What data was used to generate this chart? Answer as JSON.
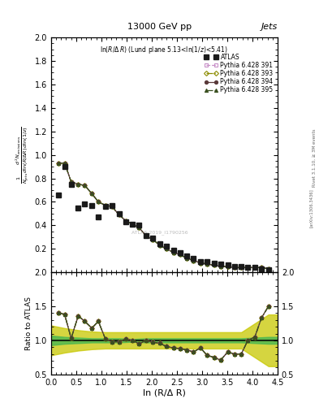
{
  "title_top": "13000 GeV pp",
  "title_right": "Jets",
  "inner_title": "ln(R/Δ R) (Lund plane 5.13<ln(1/z)<5.41)",
  "ylabel_main_line1": "d² N",
  "ylabel_ratio": "Ratio to ATLAS",
  "xlabel": "ln (R/Δ R)",
  "right_label_top": "Rivet 3.1.10, ≥ 3M events",
  "right_label_bot": "[arXiv:1306.3436]",
  "watermark": "ATLAS 2019_I1790256",
  "xlim": [
    0,
    4.5
  ],
  "ylim_main": [
    0,
    2.0
  ],
  "ylim_ratio": [
    0.5,
    2.0
  ],
  "atlas_x": [
    0.14,
    0.27,
    0.4,
    0.54,
    0.67,
    0.81,
    0.94,
    1.08,
    1.21,
    1.35,
    1.48,
    1.62,
    1.75,
    1.89,
    2.02,
    2.16,
    2.29,
    2.43,
    2.56,
    2.7,
    2.83,
    2.97,
    3.1,
    3.24,
    3.37,
    3.51,
    3.64,
    3.78,
    3.91,
    4.05,
    4.18,
    4.32
  ],
  "atlas_y": [
    0.66,
    0.9,
    0.75,
    0.55,
    0.58,
    0.57,
    0.47,
    0.56,
    0.57,
    0.5,
    0.43,
    0.41,
    0.4,
    0.31,
    0.29,
    0.24,
    0.22,
    0.19,
    0.17,
    0.14,
    0.12,
    0.09,
    0.09,
    0.08,
    0.07,
    0.06,
    0.05,
    0.05,
    0.04,
    0.04,
    0.03,
    0.02
  ],
  "atlas_yerr": [
    0.05,
    0.04,
    0.04,
    0.04,
    0.04,
    0.04,
    0.03,
    0.03,
    0.03,
    0.03,
    0.02,
    0.02,
    0.02,
    0.02,
    0.02,
    0.01,
    0.01,
    0.01,
    0.01,
    0.01,
    0.01,
    0.01,
    0.01,
    0.01,
    0.01,
    0.01,
    0.005,
    0.005,
    0.005,
    0.005,
    0.005,
    0.005
  ],
  "py391_y": [
    0.93,
    0.93,
    0.77,
    0.75,
    0.74,
    0.67,
    0.6,
    0.57,
    0.56,
    0.49,
    0.44,
    0.41,
    0.38,
    0.31,
    0.28,
    0.23,
    0.2,
    0.17,
    0.15,
    0.12,
    0.1,
    0.08,
    0.07,
    0.06,
    0.05,
    0.05,
    0.04,
    0.04,
    0.04,
    0.04,
    0.04,
    0.03
  ],
  "py393_y": [
    0.93,
    0.93,
    0.77,
    0.75,
    0.74,
    0.67,
    0.6,
    0.57,
    0.56,
    0.49,
    0.44,
    0.41,
    0.38,
    0.31,
    0.28,
    0.23,
    0.2,
    0.17,
    0.15,
    0.12,
    0.1,
    0.08,
    0.07,
    0.06,
    0.05,
    0.05,
    0.04,
    0.04,
    0.04,
    0.04,
    0.04,
    0.03
  ],
  "py394_y": [
    0.93,
    0.93,
    0.77,
    0.75,
    0.74,
    0.67,
    0.6,
    0.57,
    0.56,
    0.49,
    0.44,
    0.41,
    0.38,
    0.31,
    0.28,
    0.23,
    0.2,
    0.17,
    0.15,
    0.12,
    0.1,
    0.08,
    0.07,
    0.06,
    0.05,
    0.05,
    0.04,
    0.04,
    0.04,
    0.04,
    0.04,
    0.03
  ],
  "py395_y": [
    0.93,
    0.93,
    0.77,
    0.75,
    0.74,
    0.67,
    0.6,
    0.57,
    0.56,
    0.49,
    0.44,
    0.41,
    0.38,
    0.31,
    0.28,
    0.23,
    0.2,
    0.17,
    0.15,
    0.12,
    0.1,
    0.08,
    0.07,
    0.06,
    0.05,
    0.05,
    0.04,
    0.04,
    0.04,
    0.04,
    0.04,
    0.03
  ],
  "ratio_x": [
    0.14,
    0.27,
    0.4,
    0.54,
    0.67,
    0.81,
    0.94,
    1.08,
    1.21,
    1.35,
    1.48,
    1.62,
    1.75,
    1.89,
    2.02,
    2.16,
    2.29,
    2.43,
    2.56,
    2.7,
    2.83,
    2.97,
    3.1,
    3.24,
    3.37,
    3.51,
    3.64,
    3.78,
    3.91,
    4.05,
    4.18,
    4.32
  ],
  "ratio391_y": [
    1.41,
    1.38,
    1.03,
    1.36,
    1.28,
    1.18,
    1.28,
    1.02,
    0.98,
    0.98,
    1.02,
    1.0,
    0.95,
    1.0,
    0.97,
    0.96,
    0.91,
    0.89,
    0.88,
    0.86,
    0.83,
    0.89,
    0.78,
    0.75,
    0.71,
    0.83,
    0.8,
    0.8,
    1.0,
    1.05,
    1.33,
    1.5
  ],
  "ratio393_y": [
    1.41,
    1.38,
    1.03,
    1.36,
    1.28,
    1.18,
    1.28,
    1.02,
    0.98,
    0.98,
    1.02,
    1.0,
    0.95,
    1.0,
    0.97,
    0.96,
    0.91,
    0.89,
    0.88,
    0.86,
    0.83,
    0.89,
    0.78,
    0.75,
    0.71,
    0.83,
    0.8,
    0.8,
    1.0,
    1.05,
    1.33,
    1.5
  ],
  "ratio394_y": [
    1.41,
    1.38,
    1.03,
    1.36,
    1.28,
    1.18,
    1.28,
    1.02,
    0.98,
    0.98,
    1.02,
    1.0,
    0.95,
    1.0,
    0.97,
    0.96,
    0.91,
    0.89,
    0.88,
    0.86,
    0.83,
    0.89,
    0.78,
    0.75,
    0.71,
    0.83,
    0.8,
    0.8,
    1.0,
    1.05,
    1.33,
    1.5
  ],
  "ratio395_y": [
    1.41,
    1.38,
    1.03,
    1.36,
    1.28,
    1.18,
    1.28,
    1.02,
    0.98,
    0.98,
    1.02,
    1.0,
    0.95,
    1.0,
    0.97,
    0.96,
    0.91,
    0.89,
    0.88,
    0.86,
    0.83,
    0.89,
    0.78,
    0.75,
    0.71,
    0.83,
    0.8,
    0.8,
    1.0,
    1.05,
    1.33,
    1.5
  ],
  "green_band_x": [
    0.0,
    0.27,
    0.54,
    0.81,
    1.08,
    1.35,
    1.62,
    1.89,
    2.16,
    2.43,
    2.7,
    2.97,
    3.24,
    3.51,
    3.78,
    4.05,
    4.32,
    4.5
  ],
  "green_band_lo": [
    0.93,
    0.95,
    0.96,
    0.97,
    0.97,
    0.97,
    0.98,
    0.97,
    0.97,
    0.97,
    0.97,
    0.97,
    0.97,
    0.97,
    0.97,
    0.96,
    0.95,
    0.95
  ],
  "green_band_hi": [
    1.07,
    1.05,
    1.04,
    1.03,
    1.03,
    1.03,
    1.02,
    1.03,
    1.03,
    1.03,
    1.03,
    1.03,
    1.03,
    1.03,
    1.03,
    1.04,
    1.05,
    1.05
  ],
  "yellow_band_x": [
    0.0,
    0.27,
    0.54,
    0.81,
    1.08,
    1.35,
    1.62,
    1.89,
    2.16,
    2.43,
    2.7,
    2.97,
    3.24,
    3.51,
    3.78,
    4.05,
    4.32,
    4.5
  ],
  "yellow_band_lo": [
    0.78,
    0.82,
    0.85,
    0.87,
    0.88,
    0.88,
    0.88,
    0.88,
    0.88,
    0.88,
    0.88,
    0.88,
    0.88,
    0.88,
    0.88,
    0.75,
    0.62,
    0.62
  ],
  "yellow_band_hi": [
    1.22,
    1.18,
    1.15,
    1.13,
    1.12,
    1.12,
    1.12,
    1.12,
    1.12,
    1.12,
    1.12,
    1.12,
    1.12,
    1.12,
    1.12,
    1.25,
    1.38,
    1.38
  ],
  "color_391": "#c890c8",
  "color_393": "#8c8c00",
  "color_394": "#5a3a3a",
  "color_395": "#3a5020",
  "color_atlas": "#1a1a1a",
  "green_color": "#50b850",
  "yellow_color": "#c8c800",
  "legend_entries": [
    "ATLAS",
    "Pythia 6.428 391",
    "Pythia 6.428 393",
    "Pythia 6.428 394",
    "Pythia 6.428 395"
  ],
  "yticks_main": [
    0.2,
    0.4,
    0.6,
    0.8,
    1.0,
    1.2,
    1.4,
    1.6,
    1.8,
    2.0
  ],
  "yticks_ratio": [
    0.5,
    1.0,
    1.5,
    2.0
  ],
  "xticks": [
    0,
    1,
    2,
    3,
    4
  ]
}
